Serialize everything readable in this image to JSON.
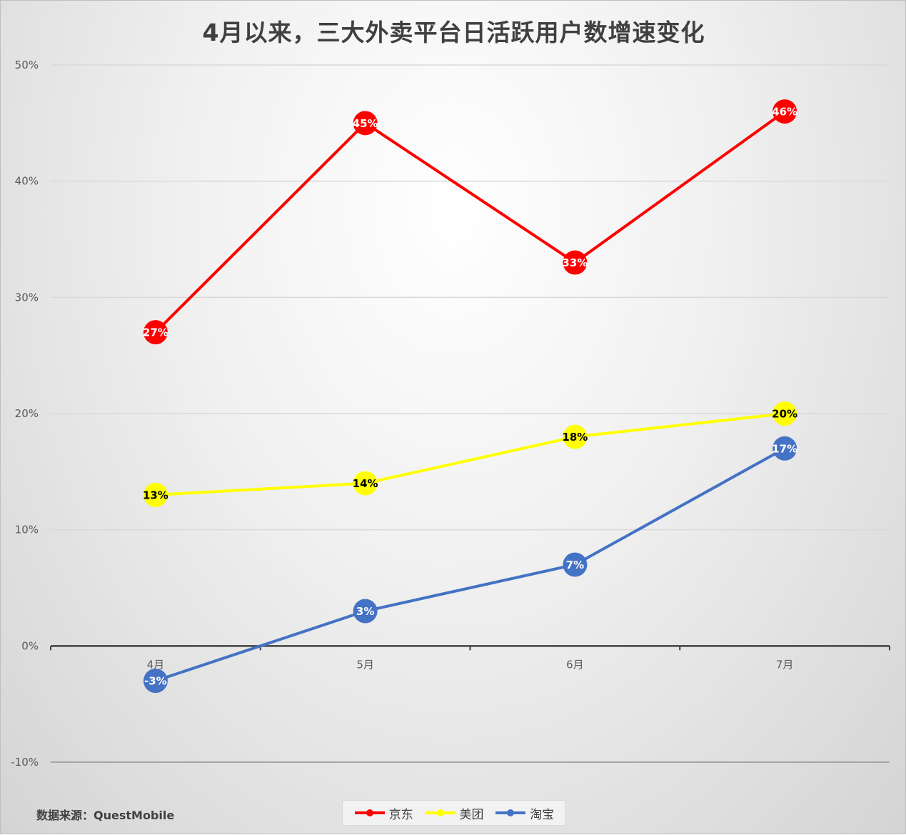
{
  "title": "4月以来，三大外卖平台日活跃用户数增速变化",
  "source_note": "数据来源：QuestMobile",
  "colors": {
    "京东": "#ff0000",
    "美团": "#ffff00",
    "淘宝": "#4472c4",
    "grid": "#d9d9d9",
    "axis": "#404040"
  },
  "chart_data": {
    "type": "line",
    "title": "4月以来，三大外卖平台日活跃用户数增速变化",
    "xlabel": "",
    "ylabel": "",
    "categories": [
      "4月",
      "5月",
      "6月",
      "7月"
    ],
    "y_ticks": [
      "-10%",
      "0%",
      "10%",
      "20%",
      "30%",
      "40%",
      "50%"
    ],
    "ylim": [
      -10,
      50
    ],
    "grid": true,
    "legend_position": "bottom",
    "series": [
      {
        "name": "京东",
        "values": [
          27,
          45,
          33,
          46
        ],
        "labels": [
          "27%",
          "45%",
          "33%",
          "46%"
        ],
        "color": "#ff0000",
        "label_color": "#ffffff"
      },
      {
        "name": "美团",
        "values": [
          13,
          14,
          18,
          20
        ],
        "labels": [
          "13%",
          "14%",
          "18%",
          "20%"
        ],
        "color": "#ffff00",
        "label_color": "#000000"
      },
      {
        "name": "淘宝",
        "values": [
          -3,
          3,
          7,
          17
        ],
        "labels": [
          "-3%",
          "3%",
          "7%",
          "17%"
        ],
        "color": "#4472c4",
        "label_color": "#ffffff"
      }
    ]
  }
}
